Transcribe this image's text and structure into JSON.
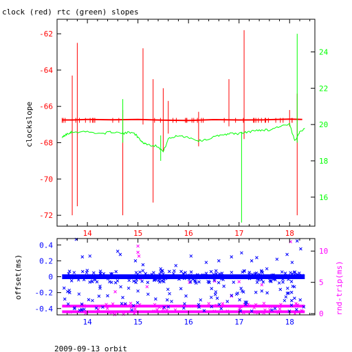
{
  "title": "clock (red) rtc (green) slopes",
  "footer": "2009-09-13 orbit",
  "colors": {
    "red": "#ff0000",
    "green": "#00ff00",
    "blue": "#0000ff",
    "magenta": "#ff00ff",
    "axis": "#000000"
  },
  "chart_data": [
    {
      "type": "line",
      "title": "clock (red) rtc (green) slopes",
      "ylabel": "clockslope",
      "xlim": [
        13.4,
        18.5
      ],
      "ylim": [
        -72.6,
        -61.2
      ],
      "y2lim": [
        14.4,
        25.8
      ],
      "grid": false,
      "x_ticks": [
        "14",
        "15",
        "16",
        "17",
        "18"
      ],
      "y_ticks": [
        "-62",
        "-64",
        "-66",
        "-68",
        "-70",
        "-72"
      ],
      "y2_ticks": [
        "16",
        "18",
        "20",
        "22",
        "24"
      ],
      "series": [
        {
          "axis": "left",
          "baseline": -66.75,
          "x_start": 13.5,
          "x_end": 18.25,
          "x": [
            13.5,
            13.7,
            14.0,
            14.5,
            15.0,
            15.5,
            16.0,
            16.5,
            17.0,
            17.5,
            18.0,
            18.25
          ],
          "y": [
            -66.75,
            -66.75,
            -66.72,
            -66.74,
            -66.72,
            -66.76,
            -66.78,
            -66.73,
            -66.75,
            -66.74,
            -66.7,
            -66.72
          ],
          "spikes": [
            {
              "x": 13.7,
              "ymin": -72.0,
              "ymax": -64.3
            },
            {
              "x": 13.8,
              "ymin": -71.5,
              "ymax": -62.5
            },
            {
              "x": 14.7,
              "ymin": -72.0,
              "ymax": -66.2
            },
            {
              "x": 15.1,
              "ymin": -67.0,
              "ymax": -62.8
            },
            {
              "x": 15.3,
              "ymin": -71.3,
              "ymax": -64.5
            },
            {
              "x": 15.5,
              "ymin": -68.5,
              "ymax": -65.0
            },
            {
              "x": 15.6,
              "ymin": -67.5,
              "ymax": -65.7
            },
            {
              "x": 16.2,
              "ymin": -68.2,
              "ymax": -66.3
            },
            {
              "x": 16.8,
              "ymin": -67.1,
              "ymax": -64.5
            },
            {
              "x": 17.1,
              "ymin": -67.8,
              "ymax": -61.8
            },
            {
              "x": 18.0,
              "ymin": -67.1,
              "ymax": -66.2
            },
            {
              "x": 18.15,
              "ymin": -72.0,
              "ymax": -65.3
            }
          ]
        },
        {
          "axis": "right",
          "x": [
            13.5,
            13.6,
            13.7,
            14.0,
            14.3,
            14.5,
            14.7,
            14.9,
            15.0,
            15.1,
            15.2,
            15.4,
            15.5,
            15.6,
            15.8,
            16.0,
            16.2,
            16.4,
            16.6,
            16.8,
            17.0,
            17.2,
            17.4,
            17.6,
            17.8,
            18.0,
            18.1,
            18.2,
            18.3
          ],
          "y": [
            19.3,
            19.5,
            19.6,
            19.6,
            19.5,
            19.6,
            19.5,
            19.6,
            19.3,
            19.0,
            18.9,
            18.8,
            18.5,
            19.2,
            19.4,
            19.3,
            19.1,
            19.2,
            19.4,
            19.5,
            19.5,
            19.6,
            19.7,
            19.7,
            19.9,
            20.0,
            19.1,
            19.6,
            19.8
          ],
          "spikes": [
            {
              "x": 14.7,
              "ymin": 19.0,
              "ymax": 21.4
            },
            {
              "x": 15.45,
              "ymin": 18.0,
              "ymax": 19.4
            },
            {
              "x": 17.05,
              "ymin": 14.6,
              "ymax": 19.6
            },
            {
              "x": 18.15,
              "ymin": 19.0,
              "ymax": 25.0
            }
          ]
        }
      ]
    },
    {
      "type": "scatter",
      "ylabel": "offset(ms)",
      "y2label": "rnd-trip(ms)",
      "xlim": [
        13.4,
        18.5
      ],
      "ylim": [
        -0.48,
        0.48
      ],
      "y2lim": [
        -0.2,
        12.0
      ],
      "grid": false,
      "x_ticks": [
        "14",
        "15",
        "16",
        "17",
        "18"
      ],
      "y_ticks": [
        "0.4",
        "0.2",
        "0",
        "-0.2",
        "-0.4"
      ],
      "y2_ticks": [
        "0",
        "5",
        "10"
      ],
      "series": [
        {
          "axis": "left",
          "x_start": 13.5,
          "x_end": 18.3,
          "center": 0.0,
          "band_halfwidth": 0.03,
          "outliers": [
            [
              13.78,
              0.47
            ],
            [
              13.9,
              0.25
            ],
            [
              14.05,
              0.26
            ],
            [
              14.25,
              -0.12
            ],
            [
              14.4,
              -0.24
            ],
            [
              14.6,
              0.32
            ],
            [
              14.65,
              0.28
            ],
            [
              14.75,
              -0.34
            ],
            [
              14.88,
              -0.42
            ],
            [
              14.95,
              0.2
            ],
            [
              15.1,
              0.15
            ],
            [
              15.2,
              -0.22
            ],
            [
              15.35,
              -0.28
            ],
            [
              15.45,
              0.1
            ],
            [
              15.6,
              -0.38
            ],
            [
              15.75,
              0.14
            ],
            [
              15.85,
              -0.15
            ],
            [
              16.05,
              0.26
            ],
            [
              16.2,
              -0.35
            ],
            [
              16.35,
              0.18
            ],
            [
              16.45,
              -0.26
            ],
            [
              16.6,
              0.2
            ],
            [
              16.7,
              -0.12
            ],
            [
              16.85,
              0.25
            ],
            [
              16.95,
              -0.22
            ],
            [
              17.05,
              0.3
            ],
            [
              17.15,
              -0.32
            ],
            [
              17.25,
              0.2
            ],
            [
              17.35,
              0.24
            ],
            [
              17.45,
              -0.18
            ],
            [
              17.55,
              0.1
            ],
            [
              17.65,
              -0.42
            ],
            [
              17.75,
              0.22
            ],
            [
              17.85,
              0.06
            ],
            [
              17.95,
              0.28
            ],
            [
              18.05,
              0.18
            ],
            [
              18.15,
              0.45
            ],
            [
              18.22,
              0.35
            ],
            [
              18.28,
              -0.38
            ],
            [
              13.65,
              -0.2
            ],
            [
              14.1,
              -0.3
            ],
            [
              15.0,
              -0.18
            ],
            [
              16.15,
              -0.08
            ],
            [
              17.9,
              -0.3
            ]
          ]
        },
        {
          "axis": "right",
          "x_start": 13.5,
          "x_end": 18.3,
          "bands": [
            0.3,
            1.2
          ],
          "points": [
            [
              15.0,
              10.8
            ],
            [
              15.0,
              9.8
            ],
            [
              15.02,
              9.2
            ],
            [
              14.92,
              6.0
            ],
            [
              15.05,
              5.6
            ],
            [
              16.02,
              5.0
            ],
            [
              16.52,
              5.2
            ],
            [
              17.0,
              5.1
            ],
            [
              18.02,
              11.5
            ],
            [
              15.18,
              4.3
            ],
            [
              16.85,
              2.8
            ],
            [
              17.45,
              4.6
            ],
            [
              14.55,
              3.5
            ]
          ]
        }
      ]
    }
  ]
}
